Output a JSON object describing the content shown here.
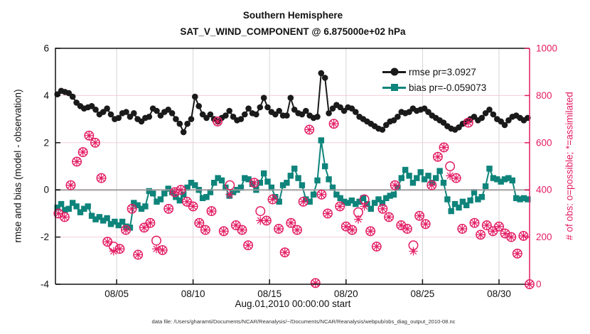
{
  "chart_data": {
    "type": "line",
    "title": "Southern Hemisphere",
    "subtitle": "SAT_V_WIND_COMPONENT @ 6.875000e+02 hPa",
    "xlabel": "Aug.01,2010 00:00:00 start",
    "ylabel_left": "rmse and bias (model - observation)",
    "ylabel_right": "# of obs: o=possible; *=assimilated",
    "footer": "data file: /Users/gharamti/Documents/NCAR/Reanalysis/~/Documents/NCAR/Reanalysis/webpub/obs_diag_output_2010-08.nc",
    "x_range": [
      1,
      32
    ],
    "x_ticks": {
      "days": [
        5,
        10,
        15,
        20,
        25,
        30
      ],
      "labels": [
        "08/05",
        "08/10",
        "08/15",
        "08/20",
        "08/25",
        "08/30"
      ]
    },
    "ylim_left": [
      -4,
      6
    ],
    "yticks_left": [
      -4,
      -2,
      0,
      2,
      4,
      6
    ],
    "ylim_right": [
      0,
      1000
    ],
    "yticks_right": [
      0,
      200,
      400,
      600,
      800,
      1000
    ],
    "grid": true,
    "legend_position": "top-right-inside",
    "colors": {
      "rmse": "#1a1a1a",
      "bias": "#0e847b",
      "obs": "#e31c63",
      "grid_pink": "#f5cdd9",
      "grid_gray": "#d6d6d6",
      "zero_line": "#9b9b9b"
    },
    "series": [
      {
        "name": "rmse pr=3.0927",
        "marker": "circle",
        "axis": "left",
        "color": "#1a1a1a",
        "t_start": 1.125,
        "t_step": 0.25,
        "values": [
          4.05,
          4.2,
          4.15,
          4.1,
          3.95,
          3.7,
          3.55,
          3.45,
          3.5,
          3.55,
          3.4,
          3.2,
          3.3,
          3.45,
          3.2,
          3.0,
          3.05,
          3.25,
          3.3,
          3.1,
          3.25,
          3.0,
          2.9,
          3.05,
          3.1,
          3.45,
          3.35,
          3.15,
          3.3,
          3.4,
          3.25,
          3.0,
          2.8,
          2.45,
          2.8,
          3.0,
          3.95,
          3.55,
          3.2,
          3.05,
          3.2,
          3.0,
          2.9,
          3.05,
          3.15,
          3.35,
          3.1,
          2.95,
          3.0,
          3.2,
          3.45,
          3.25,
          3.2,
          3.5,
          3.9,
          3.5,
          3.3,
          3.2,
          3.35,
          3.15,
          3.15,
          3.9,
          3.4,
          3.25,
          3.2,
          3.35,
          3.15,
          3.05,
          3.1,
          4.95,
          4.75,
          3.25,
          3.45,
          3.6,
          3.5,
          3.35,
          3.5,
          3.45,
          3.3,
          3.1,
          3.0,
          2.9,
          2.8,
          2.7,
          2.6,
          2.55,
          2.75,
          2.9,
          2.95,
          3.1,
          3.3,
          3.25,
          3.3,
          3.45,
          3.35,
          3.4,
          3.45,
          3.3,
          3.15,
          3.05,
          2.95,
          2.85,
          2.7,
          2.6,
          2.55,
          2.65,
          2.8,
          2.9,
          3.0,
          3.1,
          2.95,
          3.05,
          3.25,
          3.4,
          3.2,
          3.0,
          2.9,
          2.75,
          2.95,
          3.1,
          3.15,
          3.05,
          2.95,
          3.05
        ]
      },
      {
        "name": "bias pr=-0.059073",
        "marker": "square",
        "axis": "left",
        "color": "#0e847b",
        "t_start": 1.125,
        "t_step": 0.25,
        "values": [
          -0.75,
          -0.6,
          -0.85,
          -0.8,
          -0.55,
          -0.7,
          -0.95,
          -0.8,
          -0.7,
          -1.1,
          -1.25,
          -1.15,
          -1.3,
          -1.2,
          -1.45,
          -1.35,
          -1.5,
          -1.35,
          -1.55,
          -1.6,
          -0.55,
          -0.65,
          -0.8,
          -0.7,
          -0.05,
          -0.15,
          -0.5,
          -0.4,
          -0.15,
          0.05,
          -0.1,
          -0.3,
          -0.45,
          -0.2,
          0.1,
          0.3,
          0.2,
          0.0,
          -0.35,
          -0.3,
          -0.1,
          0.3,
          0.5,
          0.4,
          0.1,
          -0.25,
          -0.1,
          0.0,
          0.1,
          0.5,
          0.45,
          0.25,
          0.0,
          0.3,
          0.7,
          0.35,
          0.1,
          -0.3,
          -0.5,
          0.2,
          0.3,
          0.6,
          0.9,
          0.5,
          0.2,
          -0.4,
          -0.5,
          -0.2,
          0.4,
          2.1,
          1.0,
          0.45,
          0.1,
          -0.2,
          -0.35,
          -0.5,
          -0.55,
          -0.45,
          -0.6,
          -0.5,
          -0.35,
          -0.6,
          -0.8,
          -0.55,
          -0.4,
          -0.55,
          -0.35,
          -0.25,
          -0.2,
          0.1,
          0.5,
          0.85,
          0.6,
          0.3,
          0.5,
          0.75,
          0.45,
          0.6,
          0.3,
          0.5,
          0.8,
          0.3,
          -0.4,
          -0.9,
          -0.6,
          -0.75,
          -0.5,
          -0.65,
          -0.45,
          -0.1,
          -0.4,
          -0.3,
          0.15,
          0.9,
          0.5,
          0.45,
          0.35,
          0.45,
          0.5,
          0.4,
          -0.35,
          -0.4,
          -0.35,
          -0.4
        ]
      },
      {
        "name": "# of obs (right axis)",
        "marker": "circle-asterisk",
        "axis": "right",
        "color": "#e31c63",
        "t_start": 1.2,
        "t_step": 0.4,
        "possible": [
          300,
          285,
          420,
          520,
          560,
          630,
          600,
          450,
          180,
          160,
          150,
          230,
          320,
          125,
          240,
          260,
          185,
          145,
          320,
          390,
          400,
          350,
          330,
          260,
          230,
          310,
          690,
          225,
          420,
          250,
          230,
          165,
          430,
          310,
          270,
          360,
          235,
          135,
          260,
          230,
          350,
          655,
          5,
          380,
          300,
          680,
          330,
          245,
          230,
          305,
          360,
          225,
          160,
          320,
          285,
          420,
          250,
          235,
          165,
          290,
          255,
          420,
          540,
          580,
          500,
          450,
          235,
          685,
          260,
          210,
          250,
          225,
          245,
          215,
          200,
          130,
          205,
          0
        ],
        "assimilated": [
          300,
          285,
          420,
          520,
          560,
          630,
          600,
          450,
          180,
          140,
          150,
          230,
          320,
          125,
          240,
          260,
          150,
          145,
          320,
          390,
          400,
          350,
          330,
          260,
          230,
          310,
          690,
          225,
          380,
          250,
          230,
          165,
          430,
          270,
          270,
          360,
          235,
          135,
          260,
          230,
          350,
          655,
          5,
          380,
          300,
          680,
          330,
          245,
          230,
          275,
          330,
          225,
          160,
          320,
          285,
          420,
          250,
          235,
          140,
          290,
          255,
          420,
          540,
          580,
          460,
          450,
          235,
          685,
          260,
          210,
          250,
          225,
          245,
          215,
          200,
          130,
          205,
          0
        ]
      }
    ]
  }
}
